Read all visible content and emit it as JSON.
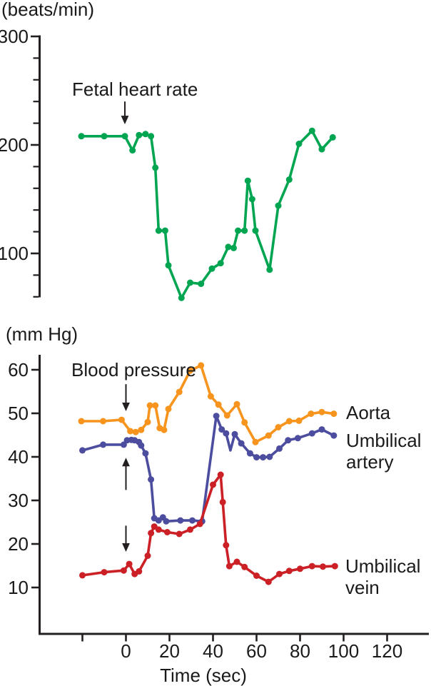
{
  "x_axis": {
    "title": "Time (sec)",
    "ticks": [
      -20,
      0,
      20,
      40,
      60,
      80,
      100,
      120
    ],
    "tick_labels": [
      "",
      "0",
      "20",
      "40",
      "60",
      "80",
      "100",
      "120"
    ]
  },
  "colors": {
    "fhr": "#00a551",
    "aorta": "#f7941e",
    "umbilical_artery": "#4c4d9f",
    "umbilical_vein": "#cb2026",
    "axis": "#231f20",
    "text": "#1a1a1a"
  },
  "chart_data": [
    {
      "type": "line",
      "panel": "top",
      "title": "Fetal heart rate",
      "ylabel": "(beats/min)",
      "ylim": [
        60,
        300
      ],
      "yticks_labeled": [
        300,
        200,
        100
      ],
      "yticks_minor": [
        280,
        260,
        240,
        220,
        180,
        160,
        140,
        120,
        80,
        60
      ],
      "xlim": [
        -40,
        139
      ],
      "grid": false,
      "arrows": [
        {
          "t": -0.5,
          "from": 240,
          "to": 219
        }
      ],
      "series": [
        {
          "name": "Fetal heart rate",
          "color": "#00a551",
          "points": [
            [
              -20.5,
              208
            ],
            [
              -10,
              208
            ],
            [
              -0.5,
              208
            ],
            [
              3,
              195
            ],
            [
              6,
              209
            ],
            [
              9,
              210
            ],
            [
              11.5,
              208
            ],
            [
              13.5,
              179
            ],
            [
              15,
              121
            ],
            [
              18,
              121
            ],
            [
              19.5,
              89
            ],
            [
              25.5,
              59
            ],
            [
              29.5,
              73
            ],
            [
              34.5,
              72
            ],
            [
              39.5,
              86
            ],
            [
              43.5,
              91
            ],
            [
              47,
              106
            ],
            [
              49.5,
              105
            ],
            [
              51.5,
              121
            ],
            [
              54.5,
              121
            ],
            [
              56,
              167
            ],
            [
              58,
              150
            ],
            [
              59.5,
              121
            ],
            [
              66,
              85
            ],
            [
              70,
              144
            ],
            [
              75,
              168
            ],
            [
              79.5,
              201
            ],
            [
              85.5,
              213
            ],
            [
              90,
              196
            ],
            [
              95,
              207
            ]
          ]
        }
      ]
    },
    {
      "type": "line",
      "panel": "bottom",
      "title": "Blood pressure",
      "ylabel": "(mm Hg)",
      "ylim": [
        0,
        63
      ],
      "yticks_labeled": [
        60,
        50,
        40,
        30,
        20,
        10
      ],
      "yticks_minor": [],
      "xlim": [
        -40,
        139
      ],
      "grid": false,
      "arrows": [
        {
          "t": 0,
          "from": 56.7,
          "to": 50.5
        },
        {
          "t": 0,
          "from": 32.4,
          "to": 39.8
        },
        {
          "t": 0,
          "from": 24.2,
          "to": 18.2
        }
      ],
      "series": [
        {
          "name": "Aorta",
          "color": "#f7941e",
          "points": [
            [
              -20.5,
              48.2
            ],
            [
              -10.5,
              48.2
            ],
            [
              -2,
              48.5
            ],
            [
              2,
              45.9
            ],
            [
              4.5,
              45.7
            ],
            [
              7,
              46.2
            ],
            [
              10,
              48
            ],
            [
              11,
              51.8
            ],
            [
              13.5,
              51.8
            ],
            [
              15.5,
              46.6
            ],
            [
              17.5,
              46.2
            ],
            [
              19.5,
              51
            ],
            [
              24.5,
              54.9
            ],
            [
              29.5,
              59.8
            ],
            [
              34.5,
              61
            ],
            [
              39,
              53.9
            ],
            [
              42.5,
              52
            ],
            [
              46.5,
              49.5
            ],
            [
              51,
              52.1
            ],
            [
              54.5,
              47.9
            ],
            [
              59.5,
              43.4
            ],
            [
              65.5,
              44.9
            ],
            [
              70,
              46.8
            ],
            [
              75,
              48.2
            ],
            [
              79.5,
              48.3
            ],
            [
              85,
              49.9
            ],
            [
              90,
              50.3
            ],
            [
              95.5,
              49.9
            ]
          ]
        },
        {
          "name": "Umbilical artery",
          "color": "#4c4d9f",
          "no_marker_at": [
            48
          ],
          "points": [
            [
              -20,
              41.5
            ],
            [
              -10.5,
              42.8
            ],
            [
              -1,
              42.8
            ],
            [
              0.5,
              43.8
            ],
            [
              2.5,
              43.9
            ],
            [
              4,
              43.8
            ],
            [
              6,
              43.4
            ],
            [
              7,
              42.6
            ],
            [
              9,
              40.8
            ],
            [
              11.5,
              34.8
            ],
            [
              13,
              25.9
            ],
            [
              15,
              25.4
            ],
            [
              17,
              26.1
            ],
            [
              18.5,
              25.2
            ],
            [
              25,
              25.4
            ],
            [
              30.5,
              25.4
            ],
            [
              35,
              25.2
            ],
            [
              41.5,
              49.4
            ],
            [
              44,
              46.3
            ],
            [
              46,
              45.4
            ],
            [
              48,
              41.5
            ],
            [
              50,
              45.2
            ],
            [
              53,
              43.1
            ],
            [
              57,
              40.8
            ],
            [
              60,
              39.9
            ],
            [
              63,
              39.9
            ],
            [
              66,
              40
            ],
            [
              70.5,
              41.9
            ],
            [
              74.5,
              43.8
            ],
            [
              79,
              44.3
            ],
            [
              85.5,
              45.4
            ],
            [
              90,
              46.3
            ],
            [
              95.5,
              44.9
            ]
          ]
        },
        {
          "name": "Umbilical vein",
          "color": "#cb2026",
          "points": [
            [
              -20,
              12.8
            ],
            [
              -10,
              13.5
            ],
            [
              -1,
              13.9
            ],
            [
              1.5,
              15.4
            ],
            [
              4,
              13.1
            ],
            [
              6,
              13.7
            ],
            [
              10,
              17.3
            ],
            [
              11.5,
              22.5
            ],
            [
              13,
              24
            ],
            [
              15,
              23.3
            ],
            [
              19,
              22.7
            ],
            [
              24.5,
              22.3
            ],
            [
              29.5,
              23.3
            ],
            [
              34,
              24.6
            ],
            [
              40,
              33.6
            ],
            [
              43.5,
              35.9
            ],
            [
              44.5,
              29.6
            ],
            [
              46,
              19.7
            ],
            [
              47.5,
              14.9
            ],
            [
              51,
              15.9
            ],
            [
              54.5,
              14.7
            ],
            [
              60,
              12.7
            ],
            [
              65.5,
              11.3
            ],
            [
              70.5,
              13.1
            ],
            [
              75,
              13.8
            ],
            [
              80,
              14.3
            ],
            [
              85.5,
              14.9
            ],
            [
              90.5,
              14.8
            ],
            [
              96,
              14.9
            ]
          ]
        }
      ]
    }
  ]
}
